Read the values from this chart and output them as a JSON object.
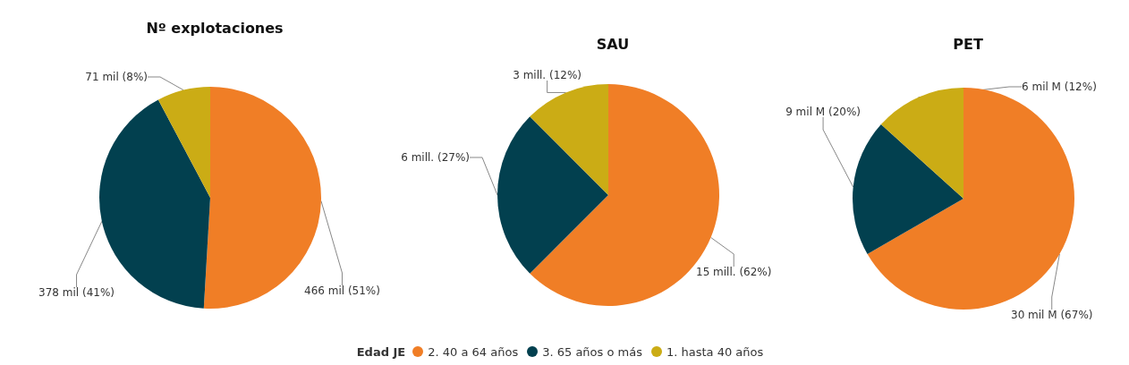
{
  "chart_data": [
    {
      "type": "pie",
      "title": "Nº explotaciones",
      "categories": [
        "2. 40 a 64 años",
        "3. 65 años o más",
        "1. hasta 40 años"
      ],
      "values": [
        466,
        378,
        71
      ],
      "value_labels": [
        "466 mil (51%)",
        "378 mil (41%)",
        "71 mil (8%)"
      ],
      "colors": [
        "#f07e26",
        "#02404f",
        "#cbac15"
      ],
      "legend": "bottom",
      "legend_title": "Edad JE"
    },
    {
      "type": "pie",
      "title": "SAU",
      "categories": [
        null,
        null,
        null
      ],
      "values": [
        15,
        6,
        3
      ],
      "value_labels": [
        "15 mill. (62%)",
        "6 mill. (27%)",
        "3 mill. (12%)"
      ],
      "colors": [
        "#f07e26",
        "#02404f",
        "#cbac15"
      ]
    },
    {
      "type": "pie",
      "title": "PET",
      "categories": [
        null,
        null,
        null
      ],
      "values": [
        30,
        9,
        6
      ],
      "value_labels": [
        "30 mil M (67%)",
        "9 mil M (20%)",
        "6 mil M (12%)"
      ],
      "colors": [
        "#f07e26",
        "#02404f",
        "#cbac15"
      ]
    }
  ]
}
